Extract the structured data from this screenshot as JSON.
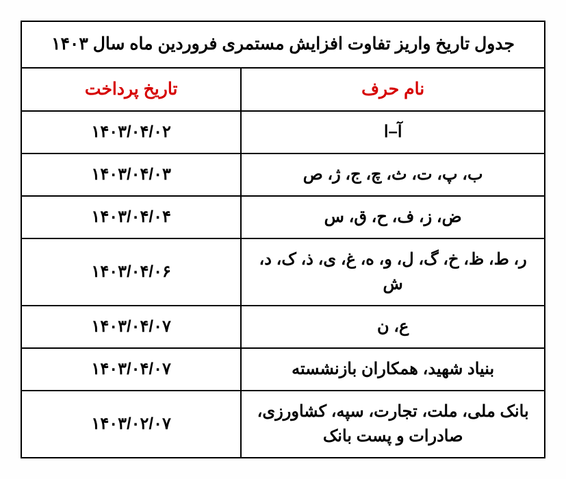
{
  "table": {
    "title": "جدول تاریخ واریز تفاوت افزایش مستمری فروردین ماه سال ۱۴۰۳",
    "columns": {
      "letter": "نام حرف",
      "date": "تاریخ پرداخت"
    },
    "rows": [
      {
        "letter": "آ–ا",
        "date": "۱۴۰۳/۰۴/۰۲"
      },
      {
        "letter": "ب، پ، ت، ث، چ، ج، ژ، ص",
        "date": "۱۴۰۳/۰۴/۰۳"
      },
      {
        "letter": "ض، ز، ف، ح، ق، س",
        "date": "۱۴۰۳/۰۴/۰۴"
      },
      {
        "letter": "ر، ط، ظ، خ، گ، ل، و، ه، غ، ی، ذ، ک، د، ش",
        "date": "۱۴۰۳/۰۴/۰۶"
      },
      {
        "letter": "ع، ن",
        "date": "۱۴۰۳/۰۴/۰۷"
      },
      {
        "letter": "بنیاد شهید، همکاران بازنشسته",
        "date": "۱۴۰۳/۰۴/۰۷"
      },
      {
        "letter": "بانک ملی، ملت، تجارت، سپه، کشاورزی، صادرات و پست بانک",
        "date": "۱۴۰۳/۰۲/۰۷"
      }
    ],
    "colors": {
      "border": "#000000",
      "header_text": "#d60000",
      "body_text": "#000000",
      "background": "#ffffff"
    },
    "font_size": 24,
    "font_weight": "bold"
  }
}
